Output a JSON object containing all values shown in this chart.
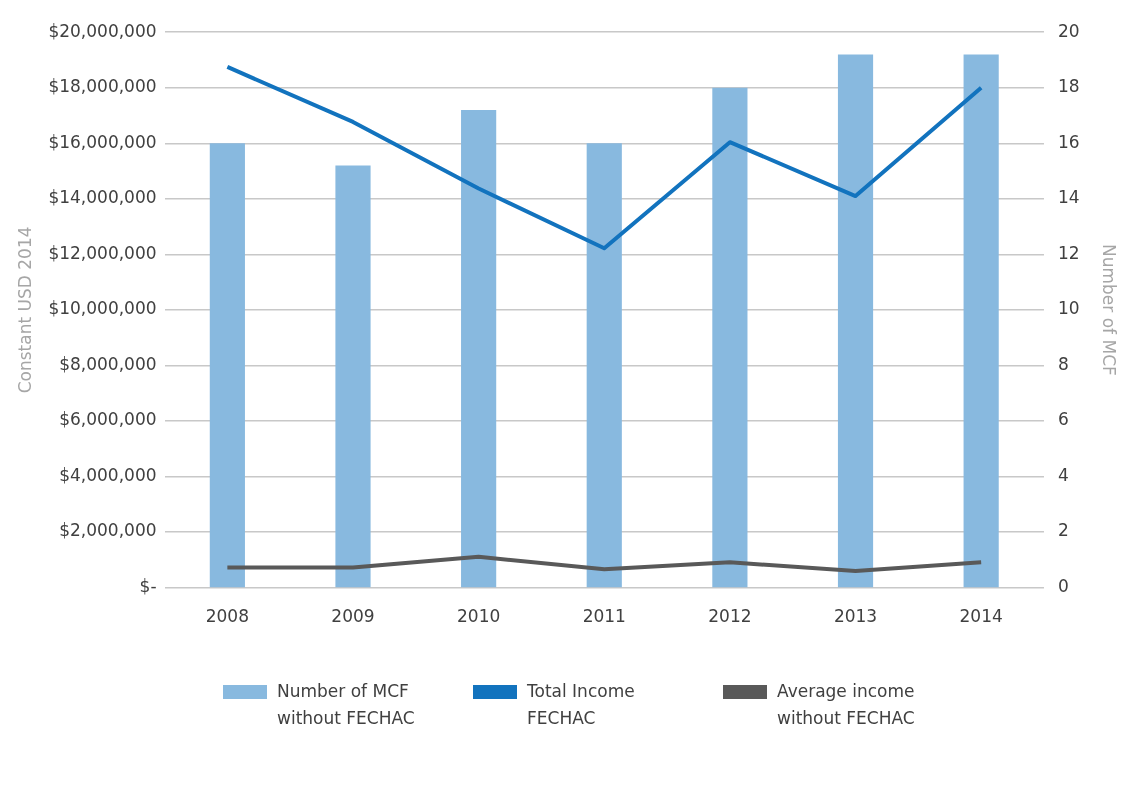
{
  "chart_data": {
    "type": "bar",
    "categories": [
      "2008",
      "2009",
      "2010",
      "2011",
      "2012",
      "2013",
      "2014"
    ],
    "ylabel": "Constant USD 2014",
    "y2label": "Number of MCF",
    "ylim": [
      0,
      20000000
    ],
    "yticks": [
      {
        "value": 0,
        "label": "$-"
      },
      {
        "value": 2000000,
        "label": "$2,000,000"
      },
      {
        "value": 4000000,
        "label": "$4,000,000"
      },
      {
        "value": 6000000,
        "label": "$6,000,000"
      },
      {
        "value": 8000000,
        "label": "$8,000,000"
      },
      {
        "value": 10000000,
        "label": "$10,000,000"
      },
      {
        "value": 12000000,
        "label": "$12,000,000"
      },
      {
        "value": 14000000,
        "label": "$14,000,000"
      },
      {
        "value": 16000000,
        "label": "$16,000,000"
      },
      {
        "value": 18000000,
        "label": "$18,000,000"
      },
      {
        "value": 20000000,
        "label": "$20,000,000"
      }
    ],
    "y2lim": [
      0,
      20
    ],
    "y2ticks": [
      0,
      2,
      4,
      6,
      8,
      10,
      12,
      14,
      16,
      18,
      20
    ],
    "grid": "y",
    "legend": "bottom",
    "series": [
      {
        "name": "Number of MCF without FECHAC",
        "axis": "y2",
        "color": "#88b9df",
        "values": [
          16,
          15.2,
          17.2,
          16,
          18,
          19.2,
          19.2
        ]
      },
      {
        "name": "Total Income FECHAC",
        "type": "line",
        "color": "#1273be",
        "values": [
          18750000,
          16770000,
          14370000,
          12220000,
          16040000,
          14100000,
          18000000
        ]
      },
      {
        "name": "Average income without FECHAC",
        "type": "line",
        "color": "#595959",
        "values": [
          720000,
          720000,
          1110000,
          660000,
          910000,
          600000,
          910000
        ]
      }
    ]
  }
}
